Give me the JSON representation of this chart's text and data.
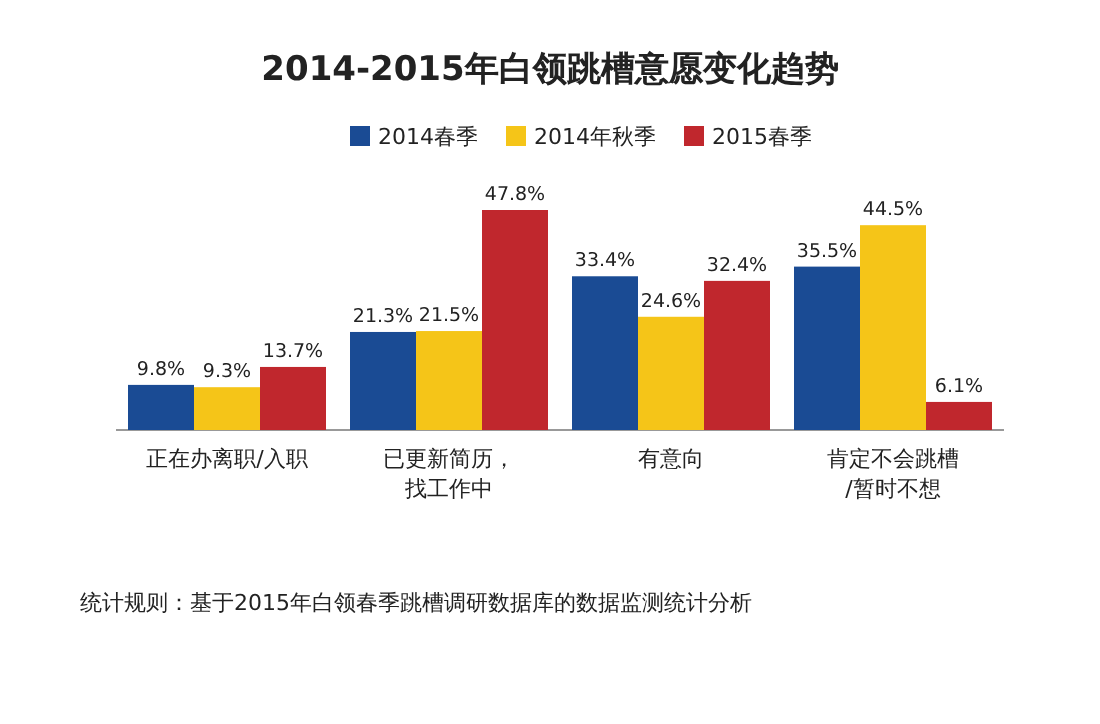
{
  "chart_data": {
    "type": "bar",
    "title": "2014-2015年白领跳槽意愿变化趋势",
    "categories": [
      "正在办离职/入职",
      "已更新简历，找工作中",
      "有意向",
      "肯定不会跳槽/暂时不想"
    ],
    "series": [
      {
        "name": "2014春季",
        "color": "#1a4b94",
        "values": [
          9.8,
          21.3,
          33.4,
          35.5
        ],
        "value_labels": [
          "9.8%",
          "21.3%",
          "33.4%",
          "35.5%"
        ]
      },
      {
        "name": "2014年秋季",
        "color": "#f5c518",
        "values": [
          9.3,
          21.5,
          24.6,
          44.5
        ],
        "value_labels": [
          "9.3%",
          "21.5%",
          "24.6%",
          "44.5%"
        ]
      },
      {
        "name": "2015春季",
        "color": "#c0272d",
        "values": [
          13.7,
          47.8,
          32.4,
          6.1
        ],
        "value_labels": [
          "13.7%",
          "47.8%",
          "32.4%",
          "6.1%"
        ]
      }
    ],
    "legend": "top",
    "annotations": [
      "统计规则：基于2015年白领春季跳槽调研数据库的数据监测统计分析"
    ]
  }
}
